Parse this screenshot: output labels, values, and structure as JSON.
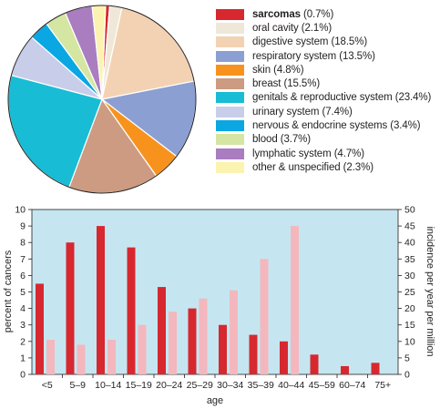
{
  "pie": {
    "slices": [
      {
        "label": "sarcomas",
        "value_text": "(0.7%)",
        "percent": 0.7,
        "color": "#d7282f",
        "bold": true
      },
      {
        "label": "oral cavity",
        "value_text": "(2.1%)",
        "percent": 2.1,
        "color": "#efe8d8",
        "bold": false
      },
      {
        "label": "digestive system",
        "value_text": "(18.5%)",
        "percent": 18.5,
        "color": "#f3d2b3",
        "bold": false
      },
      {
        "label": "respiratory system",
        "value_text": "(13.5%)",
        "percent": 13.5,
        "color": "#8c9fd2",
        "bold": false
      },
      {
        "label": "skin",
        "value_text": "(4.8%)",
        "percent": 4.8,
        "color": "#f7931d",
        "bold": false
      },
      {
        "label": "breast",
        "value_text": "(15.5%)",
        "percent": 15.5,
        "color": "#cc9b81",
        "bold": false
      },
      {
        "label": "genitals & reproductive system",
        "value_text": "(23.4%)",
        "percent": 23.4,
        "color": "#18bcd4",
        "bold": false
      },
      {
        "label": "urinary system",
        "value_text": "(7.4%)",
        "percent": 7.4,
        "color": "#c8cde9",
        "bold": false
      },
      {
        "label": "nervous & endocrine systems",
        "value_text": "(3.4%)",
        "percent": 3.4,
        "color": "#0aa7e2",
        "bold": false
      },
      {
        "label": "blood",
        "value_text": "(3.7%)",
        "percent": 3.7,
        "color": "#d5e6a2",
        "bold": false
      },
      {
        "label": "lymphatic system",
        "value_text": "(4.7%)",
        "percent": 4.7,
        "color": "#a97dbf",
        "bold": false
      },
      {
        "label": "other & unspecified",
        "value_text": "(2.3%)",
        "percent": 2.3,
        "color": "#fbf3b0",
        "bold": false
      }
    ]
  },
  "chart_data": {
    "type": "bar",
    "xlabel": "age",
    "ylabel": "percent of cancers",
    "ylabel_right": "incidence per year per million",
    "categories": [
      "<5",
      "5–9",
      "10–14",
      "15–19",
      "20–24",
      "25–29",
      "30–34",
      "35–39",
      "40–44",
      "45–59",
      "60–74",
      "75+"
    ],
    "series": [
      {
        "axis": "left",
        "color": "#d7282f",
        "values": [
          5.5,
          8,
          9,
          7.7,
          5.3,
          4,
          3,
          2.4,
          2,
          1.2,
          0.5,
          0.7
        ]
      },
      {
        "axis": "right",
        "color": "#f4b7bd",
        "values": [
          10.5,
          9,
          10.5,
          15,
          19,
          23,
          25.5,
          35,
          45,
          null,
          null,
          null
        ]
      }
    ],
    "ylim": [
      0,
      10
    ],
    "yticks": [
      0,
      1,
      2,
      3,
      4,
      5,
      6,
      7,
      8,
      9,
      10
    ],
    "ylim_right": [
      0,
      50
    ],
    "yticks_right": [
      0,
      5,
      10,
      15,
      20,
      25,
      30,
      35,
      40,
      45,
      50
    ],
    "background": "#c5e6f1",
    "grid": false
  }
}
